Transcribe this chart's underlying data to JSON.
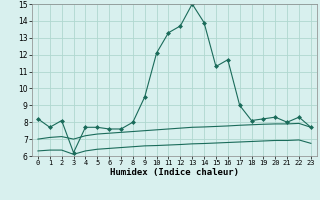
{
  "x": [
    0,
    1,
    2,
    3,
    4,
    5,
    6,
    7,
    8,
    9,
    10,
    11,
    12,
    13,
    14,
    15,
    16,
    17,
    18,
    19,
    20,
    21,
    22,
    23
  ],
  "line1": [
    8.2,
    7.7,
    8.1,
    6.2,
    7.7,
    7.7,
    7.6,
    7.6,
    8.0,
    9.5,
    12.1,
    13.3,
    13.7,
    15.0,
    13.9,
    11.3,
    11.7,
    9.0,
    8.1,
    8.2,
    8.3,
    8.0,
    8.3,
    7.7
  ],
  "line2": [
    7.0,
    7.1,
    7.15,
    7.0,
    7.2,
    7.3,
    7.35,
    7.4,
    7.45,
    7.5,
    7.55,
    7.6,
    7.65,
    7.7,
    7.72,
    7.75,
    7.78,
    7.82,
    7.85,
    7.88,
    7.9,
    7.9,
    7.93,
    7.7
  ],
  "line3": [
    6.3,
    6.35,
    6.35,
    6.1,
    6.3,
    6.4,
    6.45,
    6.5,
    6.55,
    6.6,
    6.62,
    6.65,
    6.68,
    6.72,
    6.74,
    6.77,
    6.8,
    6.83,
    6.86,
    6.89,
    6.92,
    6.92,
    6.95,
    6.75
  ],
  "line_color": "#1a6b5a",
  "bg_color": "#d8f0ee",
  "grid_color": "#b0d8d0",
  "xlabel": "Humidex (Indice chaleur)",
  "ylim": [
    6,
    15
  ],
  "xlim_min": -0.5,
  "xlim_max": 23.5,
  "yticks": [
    6,
    7,
    8,
    9,
    10,
    11,
    12,
    13,
    14,
    15
  ],
  "xticks": [
    0,
    1,
    2,
    3,
    4,
    5,
    6,
    7,
    8,
    9,
    10,
    11,
    12,
    13,
    14,
    15,
    16,
    17,
    18,
    19,
    20,
    21,
    22,
    23
  ]
}
